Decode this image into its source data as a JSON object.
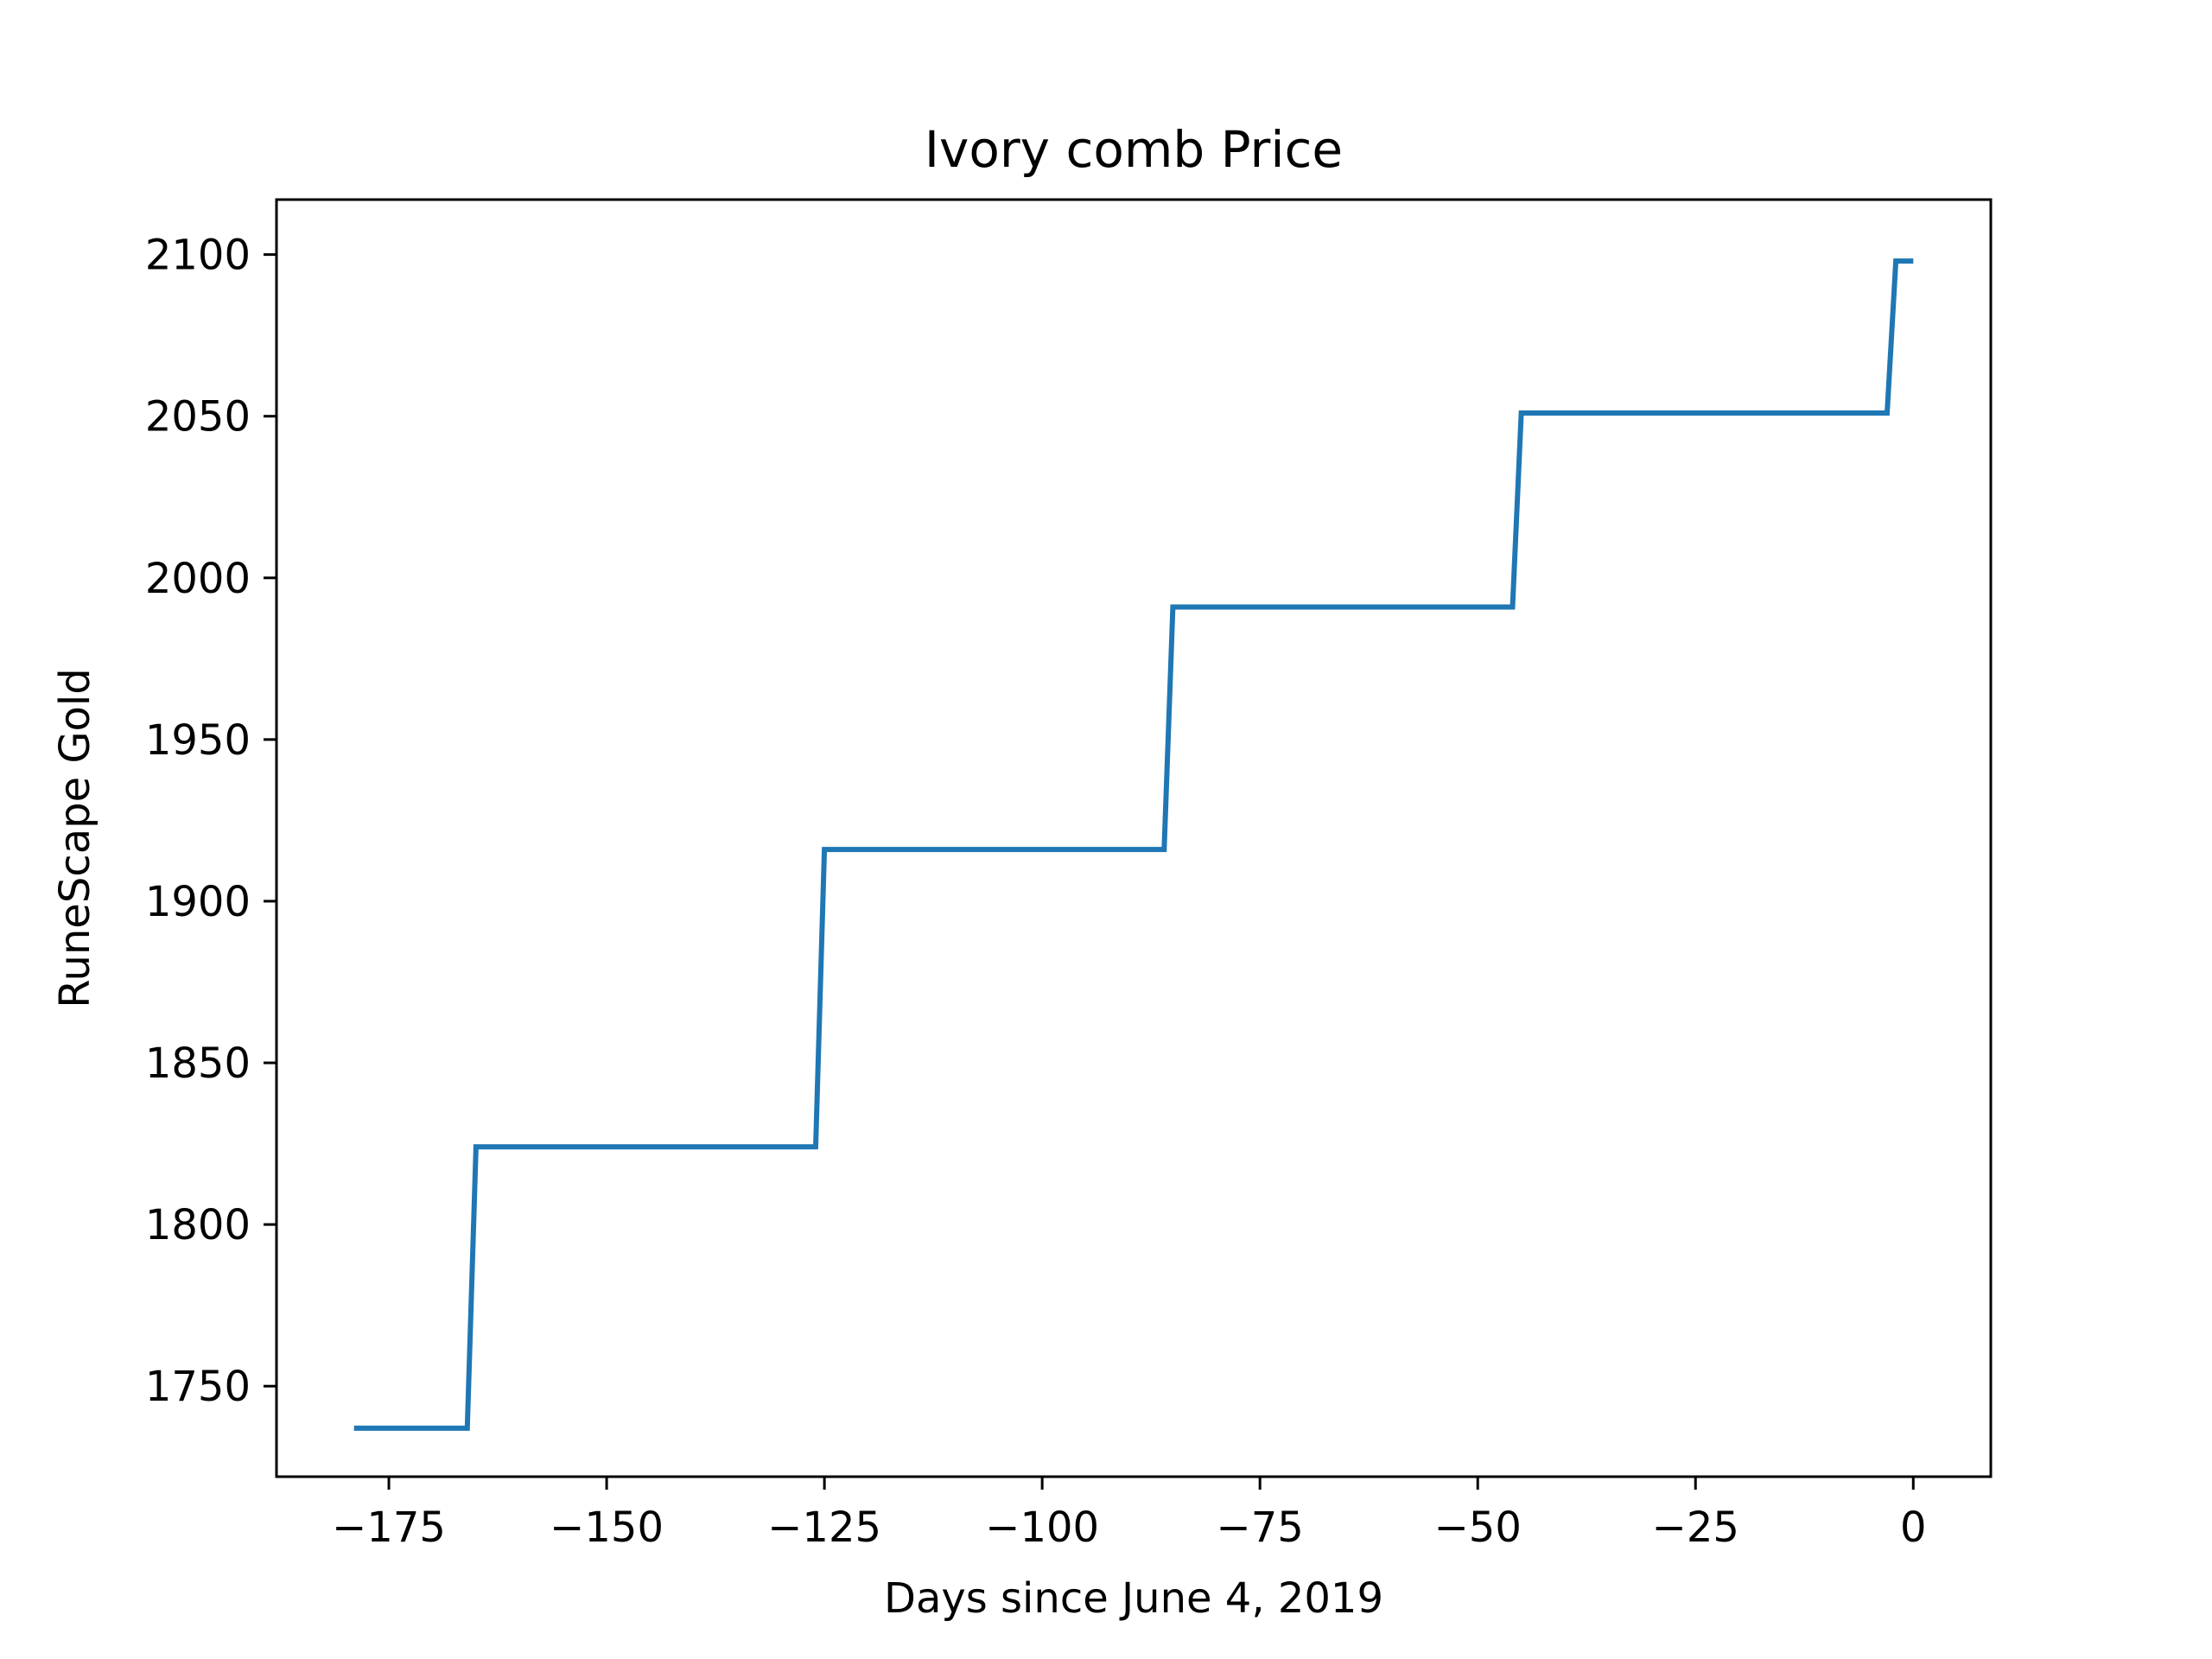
{
  "chart_data": {
    "type": "line",
    "title": "Ivory comb Price",
    "xlabel": "Days since June 4, 2019",
    "ylabel": "RuneScape Gold",
    "xlim": [
      -187.9,
      8.9
    ],
    "ylim": [
      1722,
      2117
    ],
    "xticks": [
      -175,
      -150,
      -125,
      -100,
      -75,
      -50,
      -25,
      0
    ],
    "xtick_labels": [
      "−175",
      "−150",
      "−125",
      "−100",
      "−75",
      "−50",
      "−25",
      "0"
    ],
    "yticks": [
      1750,
      1800,
      1850,
      1900,
      1950,
      2000,
      2050,
      2100
    ],
    "ytick_labels": [
      "1750",
      "1800",
      "1850",
      "1900",
      "1950",
      "2000",
      "2050",
      "2100"
    ],
    "grid": false,
    "series": [
      {
        "color": "#1f77b4",
        "x": [
          -179,
          -166,
          -165,
          -126,
          -125,
          -86,
          -85,
          -46,
          -45,
          -3,
          -2,
          0
        ],
        "y": [
          1737,
          1737,
          1824,
          1824,
          1916,
          1916,
          1991,
          1991,
          2051,
          2051,
          2098,
          2098
        ]
      }
    ]
  }
}
